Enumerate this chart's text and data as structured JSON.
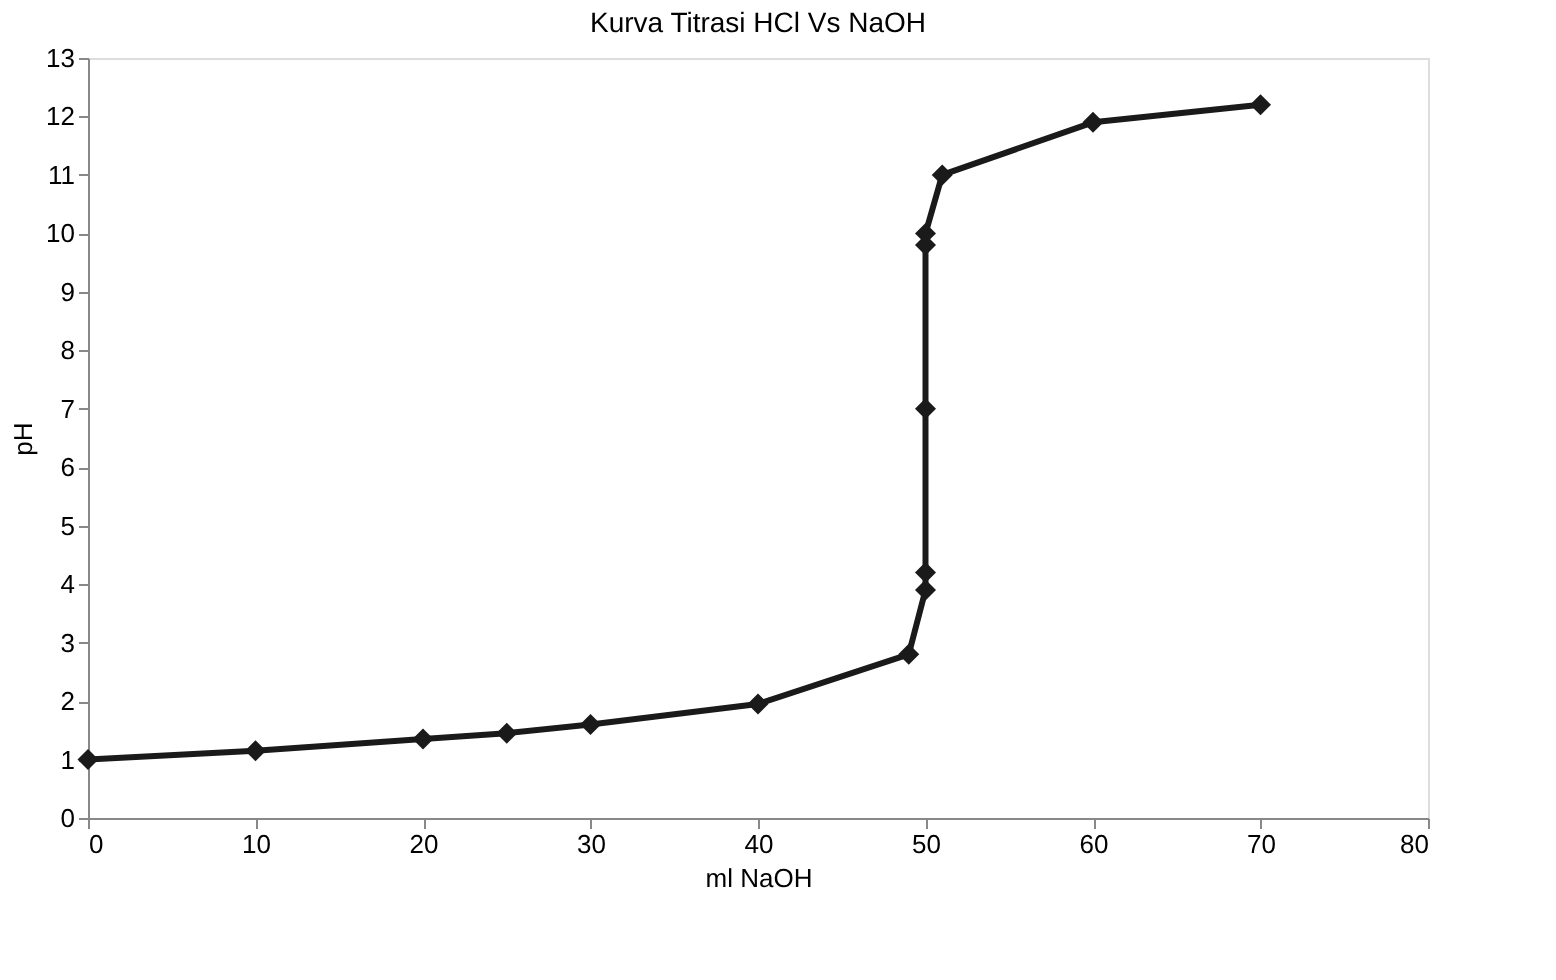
{
  "chart_data": {
    "type": "line",
    "title": "Kurva Titrasi HCl Vs NaOH",
    "xlabel": "ml NaOH",
    "ylabel": "pH",
    "series": [
      {
        "color": "#1a1a1a",
        "x": [
          0,
          10,
          20,
          25,
          30,
          40,
          49,
          50,
          50,
          50,
          50,
          50,
          51,
          60,
          70
        ],
        "values": [
          1,
          1.15,
          1.35,
          1.45,
          1.6,
          1.95,
          2.8,
          3.9,
          4.2,
          7,
          9.8,
          10,
          11,
          11.9,
          12.2
        ]
      }
    ],
    "xlim": [
      0,
      80
    ],
    "xticks": [
      0,
      10,
      20,
      30,
      40,
      50,
      60,
      70,
      80
    ],
    "ylim": [
      0,
      13
    ],
    "yticks": [
      0,
      1,
      2,
      3,
      4,
      5,
      6,
      7,
      8,
      9,
      10,
      11,
      12,
      13
    ],
    "grid": false,
    "marker": "diamond",
    "line_style": "solid"
  }
}
